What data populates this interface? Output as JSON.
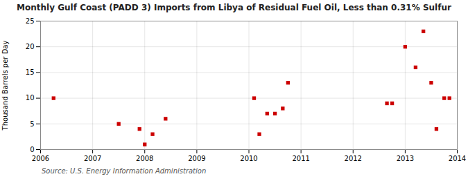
{
  "chart_data": {
    "type": "scatter",
    "title": "Monthly Gulf Coast (PADD 3) Imports from Libya of Residual Fuel Oil, Less than 0.31% Sulfur",
    "ylabel": "Thousand Barrels per Day",
    "source": "Source: U.S. Energy Information Administration",
    "x": [
      2006.25,
      2007.5,
      2007.9,
      2008.0,
      2008.15,
      2008.4,
      2010.1,
      2010.2,
      2010.35,
      2010.5,
      2010.65,
      2010.75,
      2012.65,
      2012.75,
      2013.0,
      2013.2,
      2013.35,
      2013.5,
      2013.6,
      2013.75,
      2013.85
    ],
    "values": [
      10,
      5,
      4,
      1,
      3,
      6,
      10,
      3,
      7,
      7,
      8,
      13,
      9,
      9,
      20,
      16,
      23,
      13,
      4,
      10,
      10
    ],
    "color": "#cc0000",
    "marker": "square",
    "xlim": [
      2006,
      2014
    ],
    "xticks": [
      2006,
      2007,
      2008,
      2009,
      2010,
      2011,
      2012,
      2013,
      2014
    ],
    "ylim": [
      0,
      25
    ],
    "yticks": [
      0,
      5,
      10,
      15,
      20,
      25
    ],
    "grid": true
  }
}
